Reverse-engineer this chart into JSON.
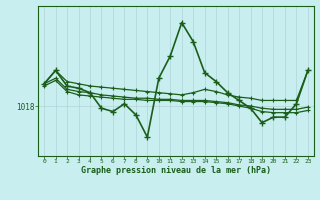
{
  "title": "",
  "xlabel": "Graphe pression niveau de la mer (hPa)",
  "ylabel": "",
  "bg_color": "#c8eef0",
  "line_color": "#1a5e1a",
  "grid_color": "#b0d4d8",
  "ytick_label": "1018",
  "ytick_value": 1018,
  "hours": [
    0,
    1,
    2,
    3,
    4,
    5,
    6,
    7,
    8,
    9,
    10,
    11,
    12,
    13,
    14,
    15,
    16,
    17,
    18,
    19,
    20,
    21,
    22,
    23
  ],
  "line1": [
    1020.0,
    1021.2,
    1020.2,
    1020.0,
    1019.8,
    1019.7,
    1019.6,
    1019.5,
    1019.4,
    1019.3,
    1019.2,
    1019.1,
    1019.0,
    1019.2,
    1019.5,
    1019.3,
    1019.0,
    1018.8,
    1018.7,
    1018.5,
    1018.5,
    1018.5,
    1018.5,
    1021.2
  ],
  "line2": [
    1020.0,
    1020.5,
    1019.5,
    1019.3,
    1019.2,
    1019.0,
    1018.9,
    1018.8,
    1018.7,
    1018.7,
    1018.6,
    1018.6,
    1018.5,
    1018.5,
    1018.5,
    1018.4,
    1018.3,
    1018.1,
    1018.0,
    1017.8,
    1017.7,
    1017.7,
    1017.7,
    1017.9
  ],
  "line3": [
    1019.8,
    1020.3,
    1019.3,
    1019.0,
    1018.9,
    1018.8,
    1018.7,
    1018.6,
    1018.6,
    1018.5,
    1018.5,
    1018.5,
    1018.4,
    1018.4,
    1018.4,
    1018.3,
    1018.2,
    1018.0,
    1017.8,
    1017.5,
    1017.4,
    1017.4,
    1017.4,
    1017.6
  ],
  "main_line": [
    1020.0,
    1021.2,
    1019.8,
    1019.6,
    1019.2,
    1017.8,
    1017.5,
    1018.2,
    1017.2,
    1015.2,
    1020.5,
    1022.5,
    1025.5,
    1023.8,
    1021.0,
    1020.2,
    1019.2,
    1018.5,
    1017.8,
    1016.5,
    1017.0,
    1017.0,
    1018.2,
    1021.2
  ],
  "ylim": [
    1013.5,
    1027.0
  ]
}
